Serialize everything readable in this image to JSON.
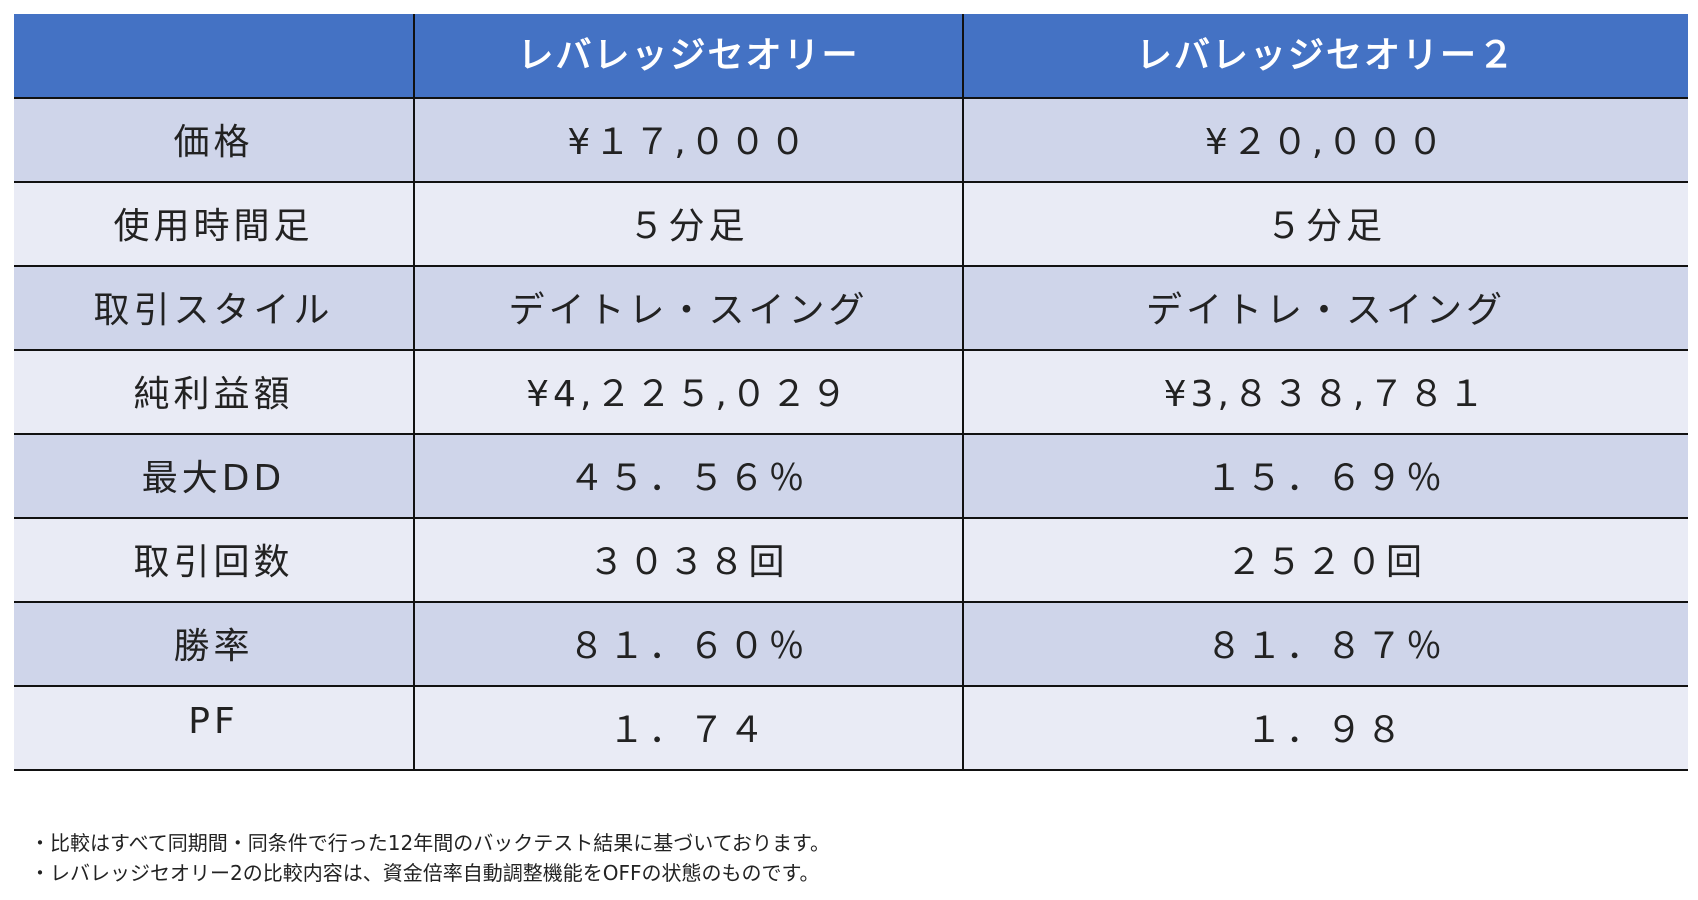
{
  "header": {
    "blank": "",
    "col1": "レバレッジセオリー",
    "col2": "レバレッジセオリー２"
  },
  "rows": [
    {
      "label": "価格",
      "v1": "¥１７,０００",
      "v2": "¥２０,０００"
    },
    {
      "label": "使用時間足",
      "v1": "５分足",
      "v2": "５分足"
    },
    {
      "label": "取引スタイル",
      "v1": "デイトレ・スイング",
      "v2": "デイトレ・スイング"
    },
    {
      "label": "純利益額",
      "v1": "¥4,２２５,０２９",
      "v2": "¥3,８３８,７８１"
    },
    {
      "label": "最大DD",
      "v1": "４５．５６％",
      "v2": "１５．６９％"
    },
    {
      "label": "取引回数",
      "v1": "３０３８回",
      "v2": "２５２０回"
    },
    {
      "label": "勝率",
      "v1": "８１．６０％",
      "v2": "８１．８７％"
    },
    {
      "label": "PF",
      "v1": "１．７４",
      "v2": "１．９８"
    }
  ],
  "notes": [
    "・比較はすべて同期間・同条件で行った12年間のバックテスト結果に基づいております。",
    "・レバレッジセオリー2の比較内容は、資金倍率自動調整機能をOFFの状態のものです。"
  ],
  "colors": {
    "header": "#4472C4",
    "row_odd": "#CFD5EA",
    "row_even": "#E9EBF5"
  }
}
